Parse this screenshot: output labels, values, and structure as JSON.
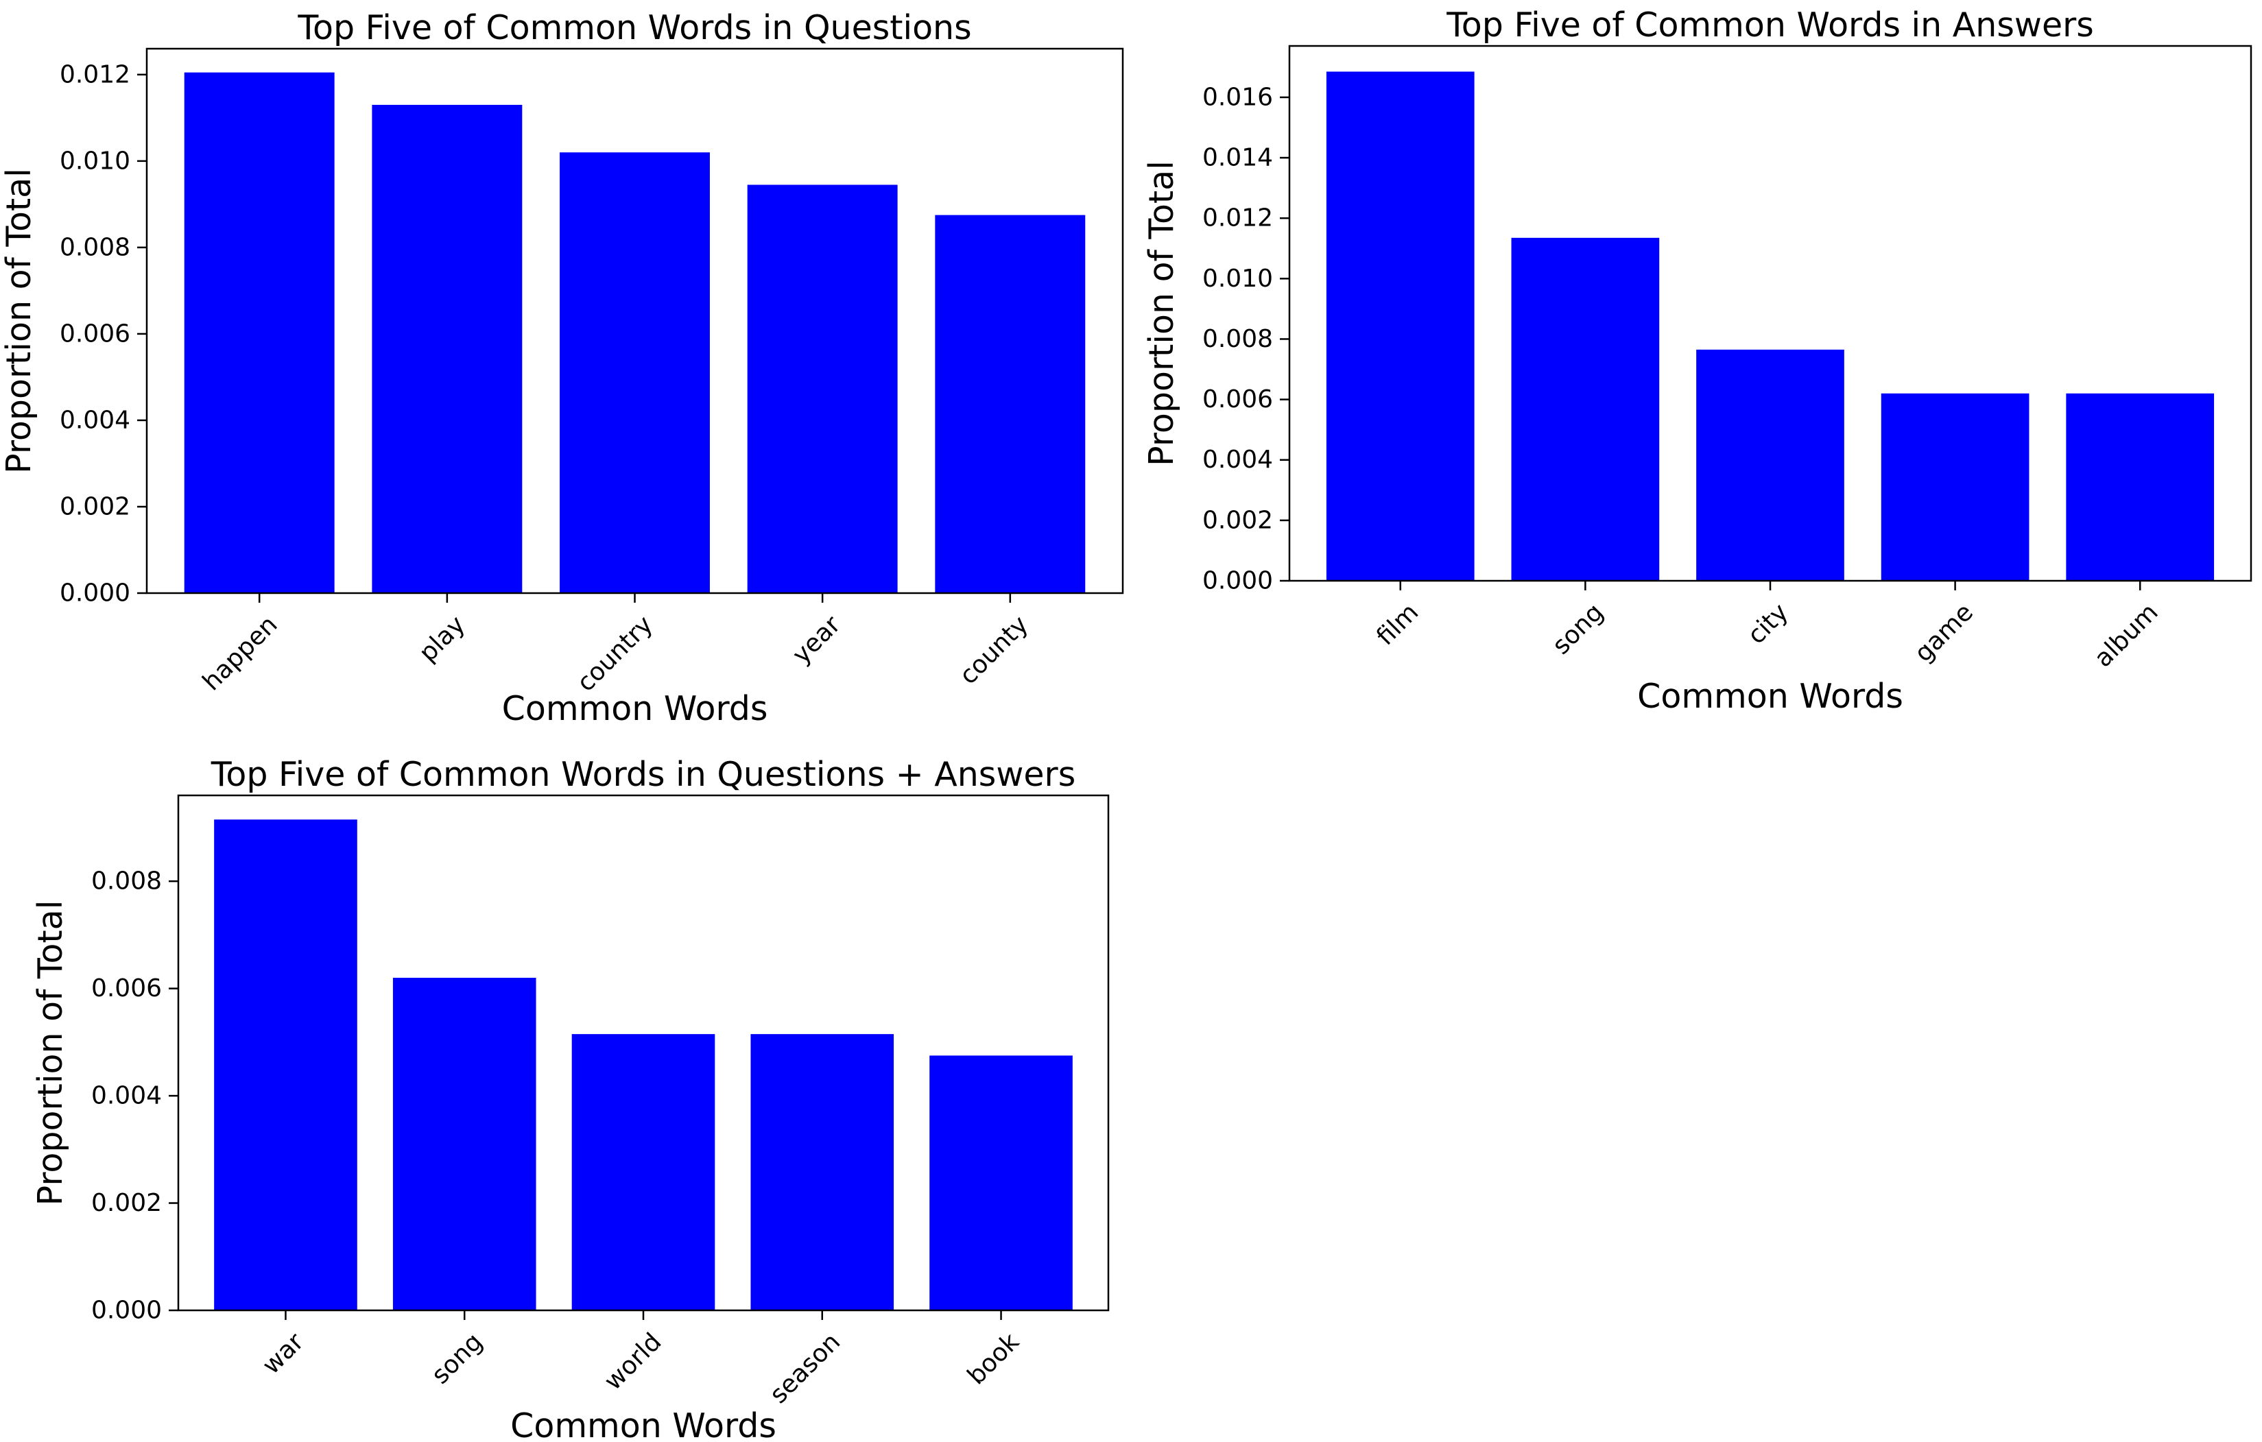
{
  "chart_data": [
    {
      "type": "bar",
      "title": "Top Five of Common Words in Questions",
      "xlabel": "Common Words",
      "ylabel": "Proportion of Total",
      "categories": [
        "happen",
        "play",
        "country",
        "year",
        "county"
      ],
      "values": [
        0.01205,
        0.0113,
        0.0102,
        0.00945,
        0.00875
      ],
      "ylim": [
        0,
        0.0126
      ],
      "yticks": [
        0.0,
        0.002,
        0.004,
        0.006,
        0.008,
        0.01,
        0.012
      ],
      "ytick_labels": [
        "0.000",
        "0.002",
        "0.004",
        "0.006",
        "0.008",
        "0.010",
        "0.012"
      ],
      "bar_color": "#0000ff",
      "grid": false,
      "legend": "none"
    },
    {
      "type": "bar",
      "title": "Top Five of Common Words in Answers",
      "xlabel": "Common Words",
      "ylabel": "Proportion of Total",
      "categories": [
        "film",
        "song",
        "city",
        "game",
        "album"
      ],
      "values": [
        0.01685,
        0.01135,
        0.00765,
        0.0062,
        0.0062
      ],
      "ylim": [
        0,
        0.0177
      ],
      "yticks": [
        0.0,
        0.002,
        0.004,
        0.006,
        0.008,
        0.01,
        0.012,
        0.014,
        0.016
      ],
      "ytick_labels": [
        "0.000",
        "0.002",
        "0.004",
        "0.006",
        "0.008",
        "0.010",
        "0.012",
        "0.014",
        "0.016"
      ],
      "bar_color": "#0000ff",
      "grid": false,
      "legend": "none"
    },
    {
      "type": "bar",
      "title": "Top Five of Common Words in Questions + Answers",
      "xlabel": "Common Words",
      "ylabel": "Proportion of Total",
      "categories": [
        "war",
        "song",
        "world",
        "season",
        "book"
      ],
      "values": [
        0.00915,
        0.0062,
        0.00515,
        0.00515,
        0.00475
      ],
      "ylim": [
        0,
        0.0096
      ],
      "yticks": [
        0.0,
        0.002,
        0.004,
        0.006,
        0.008
      ],
      "ytick_labels": [
        "0.000",
        "0.002",
        "0.004",
        "0.006",
        "0.008"
      ],
      "bar_color": "#0000ff",
      "grid": false,
      "legend": "none"
    }
  ]
}
